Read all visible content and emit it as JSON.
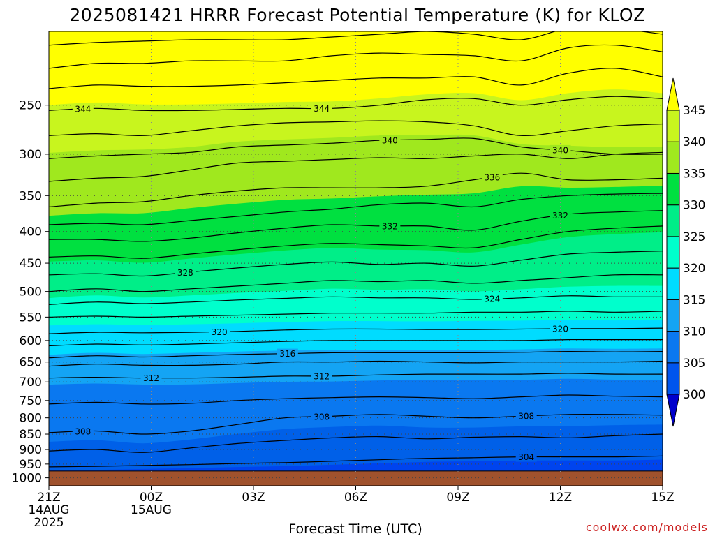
{
  "chart_data": {
    "type": "heatmap",
    "title": "2025081421 HRRR Forecast Potential Temperature (K) for KLOZ",
    "xlabel": "Forecast Time (UTC)",
    "ylabel": "",
    "credit": "coolwx.com/models",
    "y_axis": {
      "scale": "log",
      "reversed": true,
      "range": [
        1030,
        190
      ],
      "ticks": [
        250,
        300,
        350,
        400,
        450,
        500,
        550,
        600,
        650,
        700,
        750,
        800,
        850,
        900,
        950,
        1000
      ],
      "tick_labels": [
        "250",
        "300",
        "350",
        "400",
        "450",
        "500",
        "550",
        "600",
        "650",
        "700",
        "750",
        "800",
        "850",
        "900",
        "950",
        "1000"
      ]
    },
    "x_axis": {
      "range_hours": [
        0,
        18
      ],
      "ticks": [
        {
          "hour": 0,
          "lines": [
            "21Z",
            "14AUG",
            "2025"
          ]
        },
        {
          "hour": 3,
          "lines": [
            "00Z",
            "15AUG"
          ]
        },
        {
          "hour": 6,
          "lines": [
            "03Z"
          ]
        },
        {
          "hour": 9,
          "lines": [
            "06Z"
          ]
        },
        {
          "hour": 12,
          "lines": [
            "09Z"
          ]
        },
        {
          "hour": 15,
          "lines": [
            "12Z"
          ]
        },
        {
          "hour": 18,
          "lines": [
            "15Z"
          ]
        }
      ]
    },
    "grid": true,
    "colorbar": {
      "levels": [
        300,
        305,
        310,
        315,
        320,
        325,
        330,
        335,
        340,
        345
      ],
      "labels": [
        "300",
        "305",
        "310",
        "315",
        "320",
        "325",
        "330",
        "335",
        "340",
        "345"
      ],
      "under_color": "#0000cc",
      "over_color": "#ffff00",
      "colors": [
        "#0055ee",
        "#0a78f0",
        "#14a4f4",
        "#00dcff",
        "#00ffcc",
        "#00ee88",
        "#00e040",
        "#a0e81e",
        "#c8f51e"
      ]
    },
    "surface_color": "#a0522d",
    "surface_pressure": 975,
    "fill_bands": [
      {
        "color": "#0044ee",
        "theta": 302
      },
      {
        "color": "#0060e8",
        "theta": 305
      },
      {
        "color": "#0a78f0",
        "theta": 309
      },
      {
        "color": "#14a4f4",
        "theta": 314
      },
      {
        "color": "#00dcff",
        "theta": 319
      },
      {
        "color": "#00ffcc",
        "theta": 323
      },
      {
        "color": "#00ee88",
        "theta": 327
      },
      {
        "color": "#00e040",
        "theta": 332
      },
      {
        "color": "#a0e81e",
        "theta": 338
      },
      {
        "color": "#c8f51e",
        "theta": 343
      },
      {
        "color": "#ffff00",
        "theta": 346
      }
    ],
    "contours": [
      {
        "value": 304,
        "label": "304",
        "pressures": [
          960,
          958,
          955,
          952,
          948,
          945,
          940,
          935,
          930,
          928,
          925,
          925,
          925,
          922
        ]
      },
      {
        "value": 306,
        "label": "",
        "pressures": [
          905,
          900,
          910,
          895,
          880,
          870,
          862,
          858,
          865,
          860,
          858,
          862,
          855,
          850
        ]
      },
      {
        "value": 308,
        "label": "308",
        "pressures": [
          845,
          840,
          850,
          840,
          820,
          800,
          795,
          790,
          795,
          800,
          795,
          790,
          790,
          792
        ]
      },
      {
        "value": 310,
        "label": "",
        "pressures": [
          760,
          755,
          760,
          758,
          750,
          745,
          742,
          740,
          742,
          745,
          740,
          735,
          738,
          740
        ]
      },
      {
        "value": 312,
        "label": "312",
        "pressures": [
          690,
          688,
          690,
          690,
          688,
          685,
          685,
          682,
          680,
          680,
          680,
          678,
          680,
          680
        ]
      },
      {
        "value": 314,
        "label": "",
        "pressures": [
          660,
          655,
          658,
          658,
          655,
          650,
          650,
          648,
          650,
          652,
          650,
          650,
          650,
          648
        ]
      },
      {
        "value": 316,
        "label": "316",
        "pressures": [
          640,
          635,
          638,
          635,
          632,
          630,
          628,
          628,
          628,
          628,
          627,
          625,
          626,
          625
        ]
      },
      {
        "value": 318,
        "label": "",
        "pressures": [
          612,
          608,
          610,
          608,
          605,
          602,
          600,
          600,
          600,
          600,
          600,
          598,
          598,
          598
        ]
      },
      {
        "value": 320,
        "label": "320",
        "pressures": [
          585,
          582,
          583,
          582,
          580,
          577,
          575,
          575,
          576,
          576,
          575,
          574,
          574,
          573
        ]
      },
      {
        "value": 322,
        "label": "",
        "pressures": [
          550,
          548,
          550,
          548,
          546,
          544,
          542,
          542,
          542,
          540,
          540,
          538,
          540,
          538
        ]
      },
      {
        "value": 324,
        "label": "324",
        "pressures": [
          525,
          520,
          523,
          520,
          516,
          513,
          510,
          512,
          512,
          515,
          512,
          508,
          510,
          510
        ]
      },
      {
        "value": 326,
        "label": "",
        "pressures": [
          500,
          495,
          500,
          495,
          490,
          485,
          480,
          482,
          480,
          485,
          480,
          475,
          470,
          470
        ]
      },
      {
        "value": 328,
        "label": "328",
        "pressures": [
          470,
          468,
          472,
          465,
          458,
          452,
          448,
          452,
          450,
          455,
          445,
          435,
          432,
          430
        ]
      },
      {
        "value": 330,
        "label": "",
        "pressures": [
          440,
          438,
          442,
          435,
          428,
          422,
          418,
          420,
          422,
          425,
          412,
          400,
          395,
          392
        ]
      },
      {
        "value": 332,
        "label": "332",
        "pressures": [
          412,
          412,
          415,
          410,
          402,
          395,
          390,
          392,
          392,
          398,
          385,
          375,
          372,
          370
        ]
      },
      {
        "value": 334,
        "label": "",
        "pressures": [
          390,
          388,
          390,
          384,
          378,
          372,
          368,
          362,
          360,
          365,
          355,
          350,
          348,
          347
        ]
      },
      {
        "value": 336,
        "label": "336",
        "pressures": [
          365,
          360,
          358,
          350,
          344,
          340,
          340,
          340,
          338,
          330,
          322,
          330,
          330,
          328
        ]
      },
      {
        "value": 338,
        "label": "",
        "pressures": [
          332,
          328,
          326,
          318,
          310,
          308,
          306,
          304,
          305,
          302,
          300,
          305,
          300,
          298
        ]
      },
      {
        "value": 340,
        "label": "340",
        "pressures": [
          305,
          302,
          300,
          298,
          292,
          290,
          288,
          285,
          284,
          283,
          292,
          296,
          300,
          300
        ]
      },
      {
        "value": 342,
        "label": "",
        "pressures": [
          280,
          278,
          280,
          275,
          270,
          267,
          266,
          265,
          266,
          270,
          280,
          275,
          270,
          268
        ]
      },
      {
        "value": 344,
        "label": "344",
        "pressures": [
          255,
          253,
          255,
          255,
          254,
          253,
          253,
          250,
          245,
          244,
          250,
          245,
          242,
          244
        ]
      },
      {
        "value": 346,
        "label": "",
        "pressures": [
          235,
          232,
          233,
          233,
          232,
          230,
          228,
          226,
          226,
          225,
          232,
          222,
          218,
          225
        ]
      },
      {
        "value": 348,
        "label": "",
        "pressures": [
          218,
          214,
          214,
          212,
          212,
          212,
          208,
          206,
          207,
          208,
          212,
          202,
          200,
          205
        ]
      },
      {
        "value": 350,
        "label": "",
        "pressures": [
          200,
          198,
          197,
          196,
          196,
          196,
          194,
          192,
          190,
          192,
          196,
          188,
          188,
          192
        ]
      }
    ],
    "contour_label_positions": [
      {
        "value": 344,
        "hours": [
          1.0,
          8.0
        ]
      },
      {
        "value": 340,
        "hours": [
          10.0,
          15.0
        ]
      },
      {
        "value": 336,
        "hours": [
          13.0
        ]
      },
      {
        "value": 332,
        "hours": [
          10.0,
          15.0
        ]
      },
      {
        "value": 328,
        "hours": [
          4.0
        ]
      },
      {
        "value": 324,
        "hours": [
          13.0
        ]
      },
      {
        "value": 320,
        "hours": [
          5.0,
          15.0
        ]
      },
      {
        "value": 316,
        "hours": [
          7.0
        ]
      },
      {
        "value": 312,
        "hours": [
          3.0,
          8.0
        ]
      },
      {
        "value": 308,
        "hours": [
          1.0,
          8.0,
          14.0
        ]
      },
      {
        "value": 304,
        "hours": [
          14.0
        ]
      }
    ]
  }
}
